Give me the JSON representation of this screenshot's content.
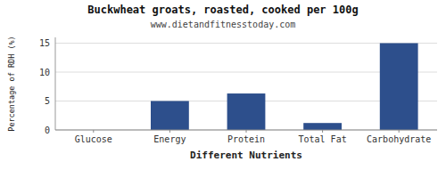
{
  "chart_data": {
    "type": "bar",
    "title": "Buckwheat groats, roasted, cooked per 100g",
    "subtitle": "www.dietandfitnesstoday.com",
    "xlabel": "Different Nutrients",
    "ylabel": "Percentage of RDH (%)",
    "categories": [
      "Glucose",
      "Energy",
      "Protein",
      "Total Fat",
      "Carbohydrate"
    ],
    "values": [
      0,
      5.0,
      6.3,
      1.2,
      15.0
    ],
    "color": "#2d4f8c",
    "ylim": [
      0,
      16
    ],
    "yticks": [
      0,
      5,
      10,
      15
    ],
    "grid": true
  }
}
